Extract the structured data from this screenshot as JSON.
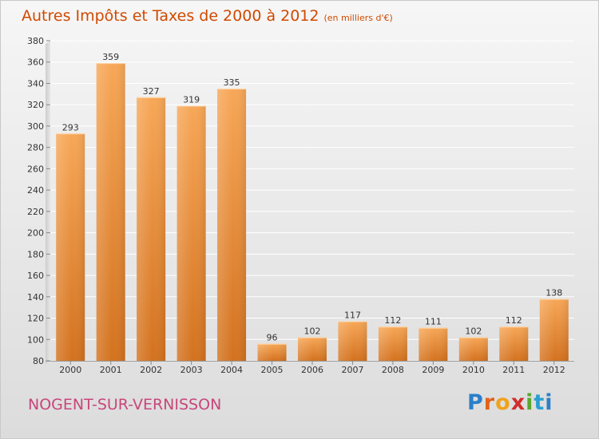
{
  "header": {
    "title": "Autres Impôts et Taxes de 2000 à 2012",
    "unit": "(en milliers d'€)"
  },
  "footer": {
    "city": "NOGENT-SUR-VERNISSON",
    "logo": "Proxiti"
  },
  "colors": {
    "bar_top": "#f7a757",
    "bar_bottom": "#d3721f",
    "title": "#d04a00",
    "city": "#c8467a"
  },
  "chart_data": {
    "type": "bar",
    "title": "Autres Impôts et Taxes de 2000 à 2012",
    "subtitle": "(en milliers d'€)",
    "xlabel": "",
    "ylabel": "",
    "categories": [
      "2000",
      "2001",
      "2002",
      "2003",
      "2004",
      "2005",
      "2006",
      "2007",
      "2008",
      "2009",
      "2010",
      "2011",
      "2012"
    ],
    "values": [
      293,
      359,
      327,
      319,
      335,
      96,
      102,
      117,
      112,
      111,
      102,
      112,
      138
    ],
    "ylim": [
      80,
      380
    ],
    "yticks": [
      80,
      100,
      120,
      140,
      160,
      180,
      200,
      220,
      240,
      260,
      280,
      300,
      320,
      340,
      360,
      380
    ],
    "grid": true,
    "legend": "none"
  }
}
